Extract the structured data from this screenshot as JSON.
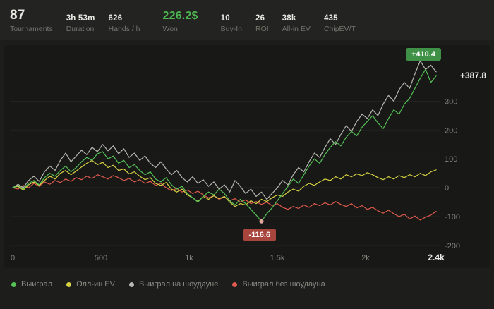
{
  "header": {
    "stats": [
      {
        "value": "87",
        "label": "Tournaments"
      },
      {
        "value": "3h 53m",
        "label": "Duration"
      },
      {
        "value": "626",
        "label": "Hands / h"
      },
      {
        "value": "226.2$",
        "label": "Won"
      },
      {
        "value": "10",
        "label": "Buy-In"
      },
      {
        "value": "26",
        "label": "ROI"
      },
      {
        "value": "38k",
        "label": "All-in EV"
      },
      {
        "value": "435",
        "label": "ChipEV/T"
      }
    ]
  },
  "chart_data": {
    "type": "line",
    "x_start": 0,
    "x_step": 30,
    "x_domain": [
      0,
      2400
    ],
    "y_domain": [
      -215,
      465
    ],
    "x_ticks": [
      {
        "value": 0,
        "label": "0"
      },
      {
        "value": 500,
        "label": "500"
      },
      {
        "value": 1000,
        "label": "1k"
      },
      {
        "value": 1500,
        "label": "1.5k"
      },
      {
        "value": 2000,
        "label": "2k"
      },
      {
        "value": 2400,
        "label": "2.4k",
        "bold": true
      }
    ],
    "y_ticks": [
      300,
      200,
      100,
      0,
      -100,
      -200
    ],
    "grid": "horizontal-faint",
    "legend_position": "bottom-left",
    "series": [
      {
        "name": "Выиграл",
        "color": "#55c157",
        "values": [
          0,
          8,
          -5,
          15,
          25,
          10,
          35,
          50,
          40,
          60,
          75,
          55,
          70,
          90,
          105,
          95,
          118,
          125,
          100,
          110,
          85,
          95,
          70,
          80,
          60,
          45,
          55,
          30,
          20,
          35,
          10,
          -5,
          5,
          -20,
          -35,
          -50,
          -30,
          -15,
          -25,
          -5,
          -20,
          -45,
          -60,
          -40,
          -55,
          -75,
          -95,
          -116.6,
          -90,
          -70,
          -45,
          -20,
          5,
          30,
          15,
          45,
          75,
          100,
          85,
          115,
          140,
          160,
          145,
          175,
          195,
          180,
          210,
          230,
          250,
          225,
          205,
          240,
          270,
          255,
          290,
          310,
          345,
          380,
          410.4,
          365,
          387.8
        ]
      },
      {
        "name": "Олл-ин EV",
        "color": "#d6d243",
        "values": [
          0,
          5,
          -8,
          10,
          20,
          8,
          25,
          40,
          30,
          50,
          60,
          45,
          58,
          72,
          85,
          95,
          80,
          88,
          70,
          78,
          60,
          65,
          48,
          55,
          40,
          28,
          35,
          15,
          8,
          18,
          -5,
          -15,
          -5,
          -25,
          -35,
          -48,
          -30,
          -40,
          -28,
          -38,
          -30,
          -50,
          -65,
          -55,
          -60,
          -45,
          -55,
          -40,
          -48,
          -35,
          -25,
          -30,
          -15,
          -5,
          -12,
          5,
          15,
          8,
          20,
          30,
          25,
          38,
          30,
          45,
          38,
          48,
          42,
          52,
          45,
          35,
          28,
          38,
          30,
          42,
          35,
          45,
          38,
          50,
          42,
          55,
          62
        ]
      },
      {
        "name": "Выиграл на шоудауне",
        "color": "#b8b8b2",
        "values": [
          0,
          12,
          0,
          25,
          40,
          22,
          55,
          75,
          60,
          95,
          120,
          90,
          110,
          130,
          115,
          140,
          125,
          150,
          128,
          145,
          118,
          135,
          105,
          120,
          95,
          110,
          85,
          70,
          90,
          65,
          45,
          60,
          35,
          20,
          38,
          15,
          28,
          5,
          20,
          -5,
          10,
          -15,
          25,
          5,
          -20,
          -5,
          -30,
          -15,
          -40,
          -20,
          0,
          25,
          10,
          45,
          70,
          55,
          90,
          120,
          105,
          140,
          170,
          150,
          185,
          215,
          195,
          230,
          255,
          240,
          270,
          250,
          290,
          320,
          300,
          340,
          365,
          345,
          395,
          440,
          410,
          425,
          402
        ]
      },
      {
        "name": "Выиграл без шоудауна",
        "color": "#e05a4d",
        "values": [
          0,
          -5,
          8,
          0,
          15,
          5,
          20,
          12,
          25,
          18,
          30,
          22,
          35,
          28,
          40,
          32,
          45,
          38,
          30,
          42,
          35,
          25,
          32,
          20,
          28,
          15,
          22,
          8,
          15,
          0,
          -10,
          -2,
          -15,
          -8,
          -20,
          -12,
          -25,
          -35,
          -28,
          -40,
          -32,
          -45,
          -38,
          -50,
          -42,
          -55,
          -48,
          -58,
          -50,
          -62,
          -55,
          -68,
          -75,
          -65,
          -72,
          -60,
          -68,
          -55,
          -62,
          -52,
          -60,
          -48,
          -58,
          -65,
          -55,
          -70,
          -62,
          -75,
          -68,
          -80,
          -88,
          -78,
          -90,
          -100,
          -92,
          -108,
          -98,
          -112,
          -102,
          -95,
          -82
        ]
      }
    ],
    "annotations": {
      "max_badge": {
        "text": "+410.4",
        "x": 2340,
        "y": 410.4,
        "color": "#3f9147"
      },
      "min_badge": {
        "text": "-116.6",
        "x": 1410,
        "y": -116.6,
        "color": "#a8463e",
        "marker_color": "#e2a79d"
      },
      "last_label": {
        "text": "+387.8",
        "y": 387.8
      }
    }
  }
}
